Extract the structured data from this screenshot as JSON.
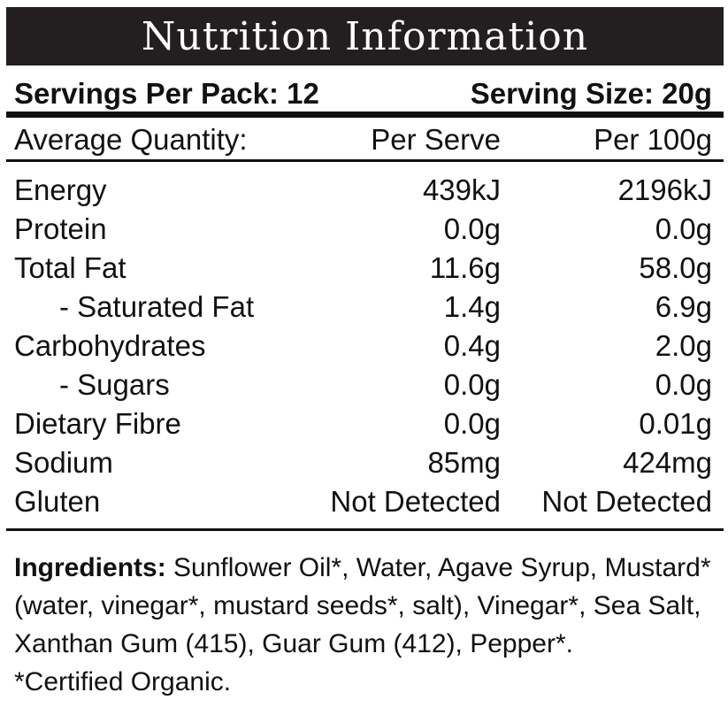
{
  "title": "Nutrition Information",
  "servings": {
    "per_pack_label": "Servings Per Pack: 12",
    "size_label": "Serving Size: 20g"
  },
  "header": {
    "col1": "Average Quantity:",
    "col2": "Per Serve",
    "col3": "Per 100g"
  },
  "rows": [
    {
      "name": "Energy",
      "per_serve": "439kJ",
      "per_100g": "2196kJ"
    },
    {
      "name": "Protein",
      "per_serve": "0.0g",
      "per_100g": "0.0g"
    },
    {
      "name": "Total Fat",
      "per_serve": "11.6g",
      "per_100g": "58.0g"
    },
    {
      "name": "- Saturated Fat",
      "per_serve": "1.4g",
      "per_100g": "6.9g"
    },
    {
      "name": "Carbohydrates",
      "per_serve": "0.4g",
      "per_100g": "2.0g"
    },
    {
      "name": "- Sugars",
      "per_serve": "0.0g",
      "per_100g": "0.0g"
    },
    {
      "name": "Dietary Fibre",
      "per_serve": "0.0g",
      "per_100g": "0.01g"
    },
    {
      "name": "Sodium",
      "per_serve": "85mg",
      "per_100g": "424mg"
    },
    {
      "name": "Gluten",
      "per_serve": "Not Detected",
      "per_100g": "Not Detected"
    }
  ],
  "ingredients": {
    "label": "Ingredients:",
    "text": "Sunflower Oil*, Water, Agave Syrup, Mustard* (water, vinegar*, mustard seeds*, salt), Vinegar*, Sea Salt, Xanthan Gum (415), Guar Gum (412), Pepper*.",
    "note": "*Certified Organic."
  }
}
